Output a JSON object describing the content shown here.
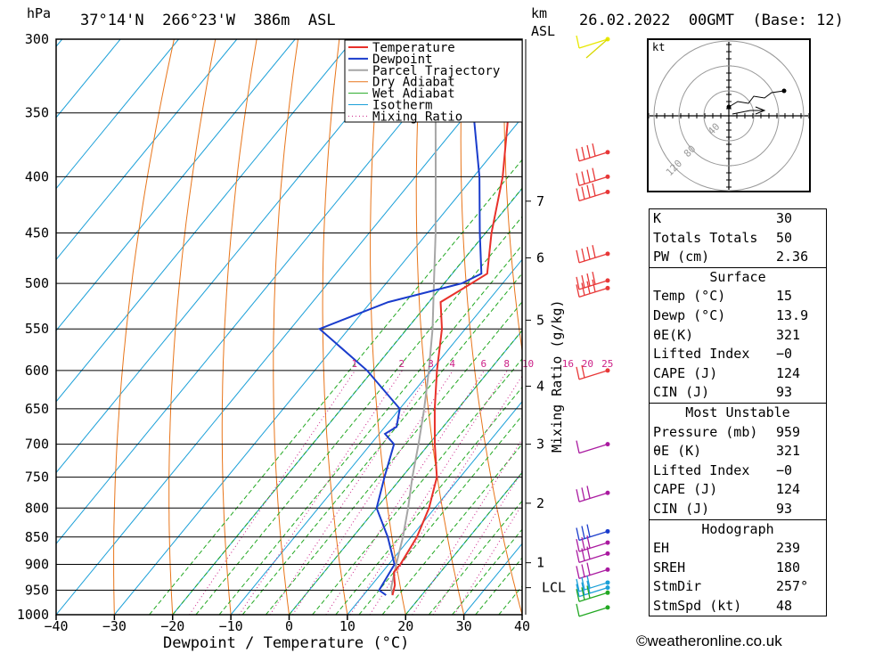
{
  "header": {
    "pressure_unit": "hPa",
    "location": "37°14'N  266°23'W  386m  ASL",
    "km_label": "km",
    "asl_label": "ASL",
    "datetime": "26.02.2022  00GMT  (Base: 12)"
  },
  "chart_data": {
    "type": "skew-t",
    "xlabel": "Dewpoint / Temperature (°C)",
    "ylabel_left": "hPa",
    "ylabel_right": "Mixing Ratio (g/kg)",
    "xlim": [
      -40,
      40
    ],
    "ylim": [
      1000,
      300
    ],
    "x_ticks": [
      "−40",
      "−30",
      "−20",
      "−10",
      "0",
      "10",
      "20",
      "30",
      "40"
    ],
    "pressure_ticks": [
      "300",
      "350",
      "400",
      "450",
      "500",
      "550",
      "600",
      "650",
      "700",
      "750",
      "800",
      "850",
      "900",
      "950",
      "1000"
    ],
    "km_ticks": [
      {
        "label": "7",
        "p": 421
      },
      {
        "label": "6",
        "p": 474
      },
      {
        "label": "5",
        "p": 540
      },
      {
        "label": "4",
        "p": 620
      },
      {
        "label": "3",
        "p": 700
      },
      {
        "label": "2",
        "p": 792
      },
      {
        "label": "1",
        "p": 897
      },
      {
        "label": "LCL",
        "p": 945
      }
    ],
    "mixing_ratio_labels": [
      "1",
      "2",
      "3",
      "4",
      "6",
      "8",
      "10",
      "16",
      "20",
      "25"
    ],
    "legend": [
      "Temperature",
      "Dewpoint",
      "Parcel Trajectory",
      "Dry Adiabat",
      "Wet Adiabat",
      "Isotherm",
      "Mixing Ratio"
    ],
    "colors": {
      "temperature": "#e8312a",
      "dewpoint": "#1a3ccc",
      "parcel": "#a6a6a6",
      "dry_adiabat": "#e8751a",
      "wet_adiabat": "#22a822",
      "isotherm": "#1ba0d8",
      "mixing": "#cc2288"
    },
    "temperature": [
      {
        "p": 960,
        "t": 15
      },
      {
        "p": 940,
        "t": 14
      },
      {
        "p": 915,
        "t": 12
      },
      {
        "p": 900,
        "t": 12
      },
      {
        "p": 850,
        "t": 11
      },
      {
        "p": 800,
        "t": 9
      },
      {
        "p": 750,
        "t": 6
      },
      {
        "p": 700,
        "t": 1
      },
      {
        "p": 650,
        "t": -4
      },
      {
        "p": 600,
        "t": -9
      },
      {
        "p": 550,
        "t": -14
      },
      {
        "p": 520,
        "t": -18
      },
      {
        "p": 505,
        "t": -16
      },
      {
        "p": 490,
        "t": -14
      },
      {
        "p": 450,
        "t": -19
      },
      {
        "p": 400,
        "t": -25
      },
      {
        "p": 350,
        "t": -33
      },
      {
        "p": 300,
        "t": -42
      }
    ],
    "dewpoint": [
      {
        "p": 960,
        "t": 13.9
      },
      {
        "p": 950,
        "t": 12
      },
      {
        "p": 900,
        "t": 11
      },
      {
        "p": 850,
        "t": 6
      },
      {
        "p": 800,
        "t": 0
      },
      {
        "p": 750,
        "t": -3
      },
      {
        "p": 700,
        "t": -6
      },
      {
        "p": 685,
        "t": -9
      },
      {
        "p": 675,
        "t": -8
      },
      {
        "p": 650,
        "t": -10
      },
      {
        "p": 600,
        "t": -21
      },
      {
        "p": 550,
        "t": -35
      },
      {
        "p": 520,
        "t": -27
      },
      {
        "p": 500,
        "t": -17
      },
      {
        "p": 490,
        "t": -15
      },
      {
        "p": 450,
        "t": -21
      },
      {
        "p": 400,
        "t": -29
      },
      {
        "p": 350,
        "t": -39
      },
      {
        "p": 300,
        "t": -50
      }
    ],
    "parcel": [
      {
        "p": 960,
        "t": 15
      },
      {
        "p": 945,
        "t": 13.7
      },
      {
        "p": 900,
        "t": 11.3
      },
      {
        "p": 850,
        "t": 8.6
      },
      {
        "p": 800,
        "t": 5.4
      },
      {
        "p": 750,
        "t": 1.8
      },
      {
        "p": 700,
        "t": -1.8
      },
      {
        "p": 650,
        "t": -5.8
      },
      {
        "p": 600,
        "t": -10.4
      },
      {
        "p": 550,
        "t": -15.6
      },
      {
        "p": 500,
        "t": -21.8
      },
      {
        "p": 450,
        "t": -28.6
      },
      {
        "p": 400,
        "t": -36.5
      },
      {
        "p": 350,
        "t": -45.5
      },
      {
        "p": 300,
        "t": -55.5
      }
    ]
  },
  "hodograph": {
    "unit": "kt",
    "ring_labels": [
      "40",
      "80",
      "120"
    ]
  },
  "indices": {
    "rows": [
      {
        "key": "K",
        "value": "30"
      },
      {
        "key": "Totals Totals",
        "value": "50"
      },
      {
        "key": "PW (cm)",
        "value": "2.36"
      }
    ]
  },
  "surface": {
    "title": "Surface",
    "rows": [
      {
        "key": "Temp (°C)",
        "value": "15"
      },
      {
        "key": "Dewp (°C)",
        "value": "13.9"
      },
      {
        "key": "θE(K)",
        "value": "321"
      },
      {
        "key": "Lifted Index",
        "value": "−0"
      },
      {
        "key": "CAPE (J)",
        "value": "124"
      },
      {
        "key": "CIN (J)",
        "value": "93"
      }
    ]
  },
  "most_unstable": {
    "title": "Most Unstable",
    "rows": [
      {
        "key": "Pressure (mb)",
        "value": "959"
      },
      {
        "key": "θE (K)",
        "value": "321"
      },
      {
        "key": "Lifted Index",
        "value": "−0"
      },
      {
        "key": "CAPE (J)",
        "value": "124"
      },
      {
        "key": "CIN (J)",
        "value": "93"
      }
    ]
  },
  "hodograph_stats": {
    "title": "Hodograph",
    "rows": [
      {
        "key": "EH",
        "value": "239"
      },
      {
        "key": "SREH",
        "value": "180"
      },
      {
        "key": "StmDir",
        "value": "257°"
      },
      {
        "key": "StmSpd (kt)",
        "value": "48"
      }
    ]
  },
  "footer": {
    "copyright": "©weatheronline.co.uk"
  }
}
